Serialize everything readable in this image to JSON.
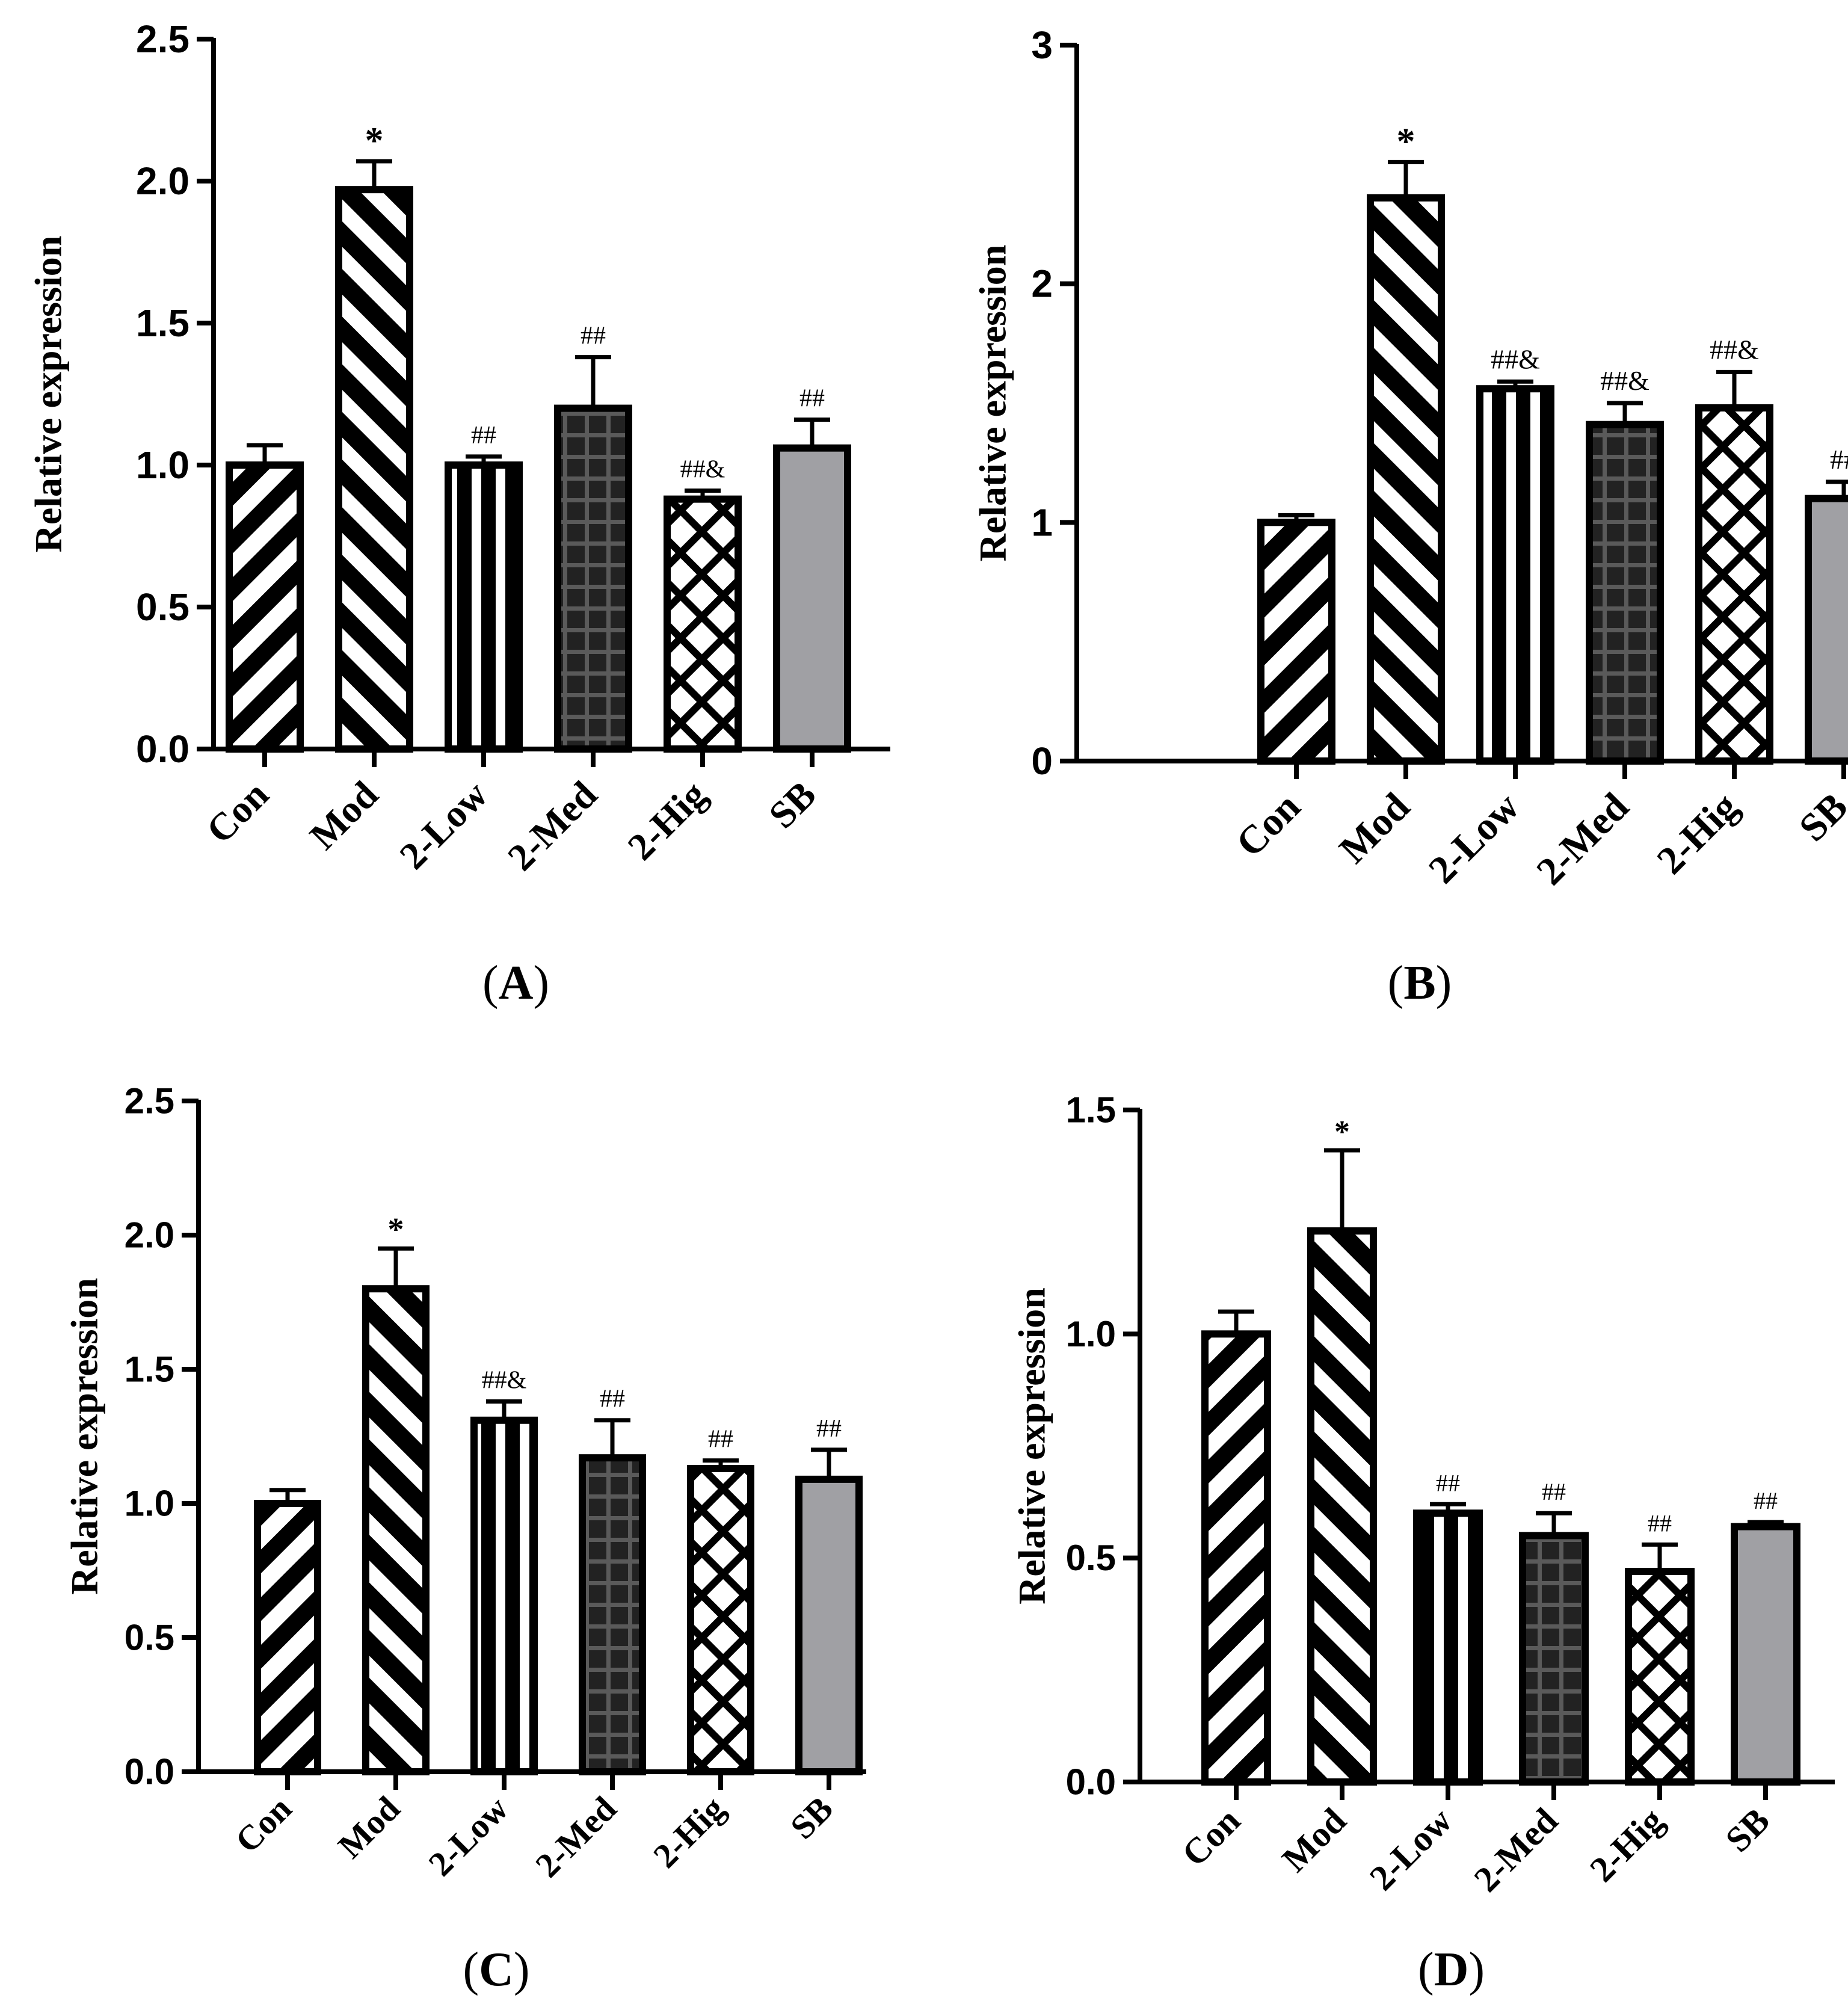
{
  "chart_data": [
    {
      "id": "A",
      "type": "bar",
      "panel_label": "A",
      "ylabel": "Relative expression",
      "categories": [
        "Con",
        "Mod",
        "2-Low",
        "2-Med",
        "2-Hig",
        "SB"
      ],
      "values": [
        1.0,
        1.97,
        1.0,
        1.2,
        0.88,
        1.06
      ],
      "errors": [
        0.07,
        0.1,
        0.03,
        0.18,
        0.03,
        0.1
      ],
      "annotations": [
        "",
        "*",
        "##",
        "##",
        "##&",
        "##"
      ],
      "ylim": [
        0,
        2.5
      ],
      "yticks": [
        "0.0",
        "0.5",
        "1.0",
        "1.5",
        "2.0",
        "2.5"
      ],
      "tick_values": [
        0,
        0.5,
        1.0,
        1.5,
        2.0,
        2.5
      ]
    },
    {
      "id": "B",
      "type": "bar",
      "panel_label": "B",
      "ylabel": "Relative expression",
      "categories": [
        "Con",
        "Mod",
        "2-Low",
        "2-Med",
        "2-Hig",
        "SB"
      ],
      "values": [
        1.0,
        2.36,
        1.56,
        1.41,
        1.48,
        1.1
      ],
      "errors": [
        0.03,
        0.15,
        0.03,
        0.09,
        0.15,
        0.07
      ],
      "annotations": [
        "",
        "*",
        "##&",
        "##&",
        "##&",
        "##"
      ],
      "ylim": [
        0,
        3
      ],
      "yticks": [
        "0",
        "1",
        "2",
        "3"
      ],
      "tick_values": [
        0,
        1,
        2,
        3
      ]
    },
    {
      "id": "C",
      "type": "bar",
      "panel_label": "C",
      "ylabel": "Relative expression",
      "categories": [
        "Con",
        "Mod",
        "2-Low",
        "2-Med",
        "2-Hig",
        "SB"
      ],
      "values": [
        1.0,
        1.8,
        1.31,
        1.17,
        1.13,
        1.09
      ],
      "errors": [
        0.05,
        0.15,
        0.07,
        0.14,
        0.03,
        0.11
      ],
      "annotations": [
        "",
        "*",
        "##&",
        "##",
        "##",
        "##"
      ],
      "ylim": [
        0,
        2.5
      ],
      "yticks": [
        "0.0",
        "0.5",
        "1.0",
        "1.5",
        "2.0",
        "2.5"
      ],
      "tick_values": [
        0,
        0.5,
        1.0,
        1.5,
        2.0,
        2.5
      ]
    },
    {
      "id": "D",
      "type": "bar",
      "panel_label": "D",
      "ylabel": "Relative expression",
      "categories": [
        "Con",
        "Mod",
        "2-Low",
        "2-Med",
        "2-Hig",
        "SB"
      ],
      "values": [
        1.0,
        1.23,
        0.6,
        0.55,
        0.47,
        0.57
      ],
      "errors": [
        0.05,
        0.18,
        0.02,
        0.05,
        0.06,
        0.01
      ],
      "annotations": [
        "",
        "*",
        "##",
        "##",
        "##",
        "##"
      ],
      "ylim": [
        0,
        1.5
      ],
      "yticks": [
        "0.0",
        "0.5",
        "1.0",
        "1.5"
      ],
      "tick_values": [
        0,
        0.5,
        1.0,
        1.5
      ]
    }
  ],
  "colors": {
    "black": "#000000",
    "white": "#ffffff",
    "med_fill": "#2b2b2b",
    "med_grid": "#555555",
    "sb_fill": "#a0a0a4"
  }
}
